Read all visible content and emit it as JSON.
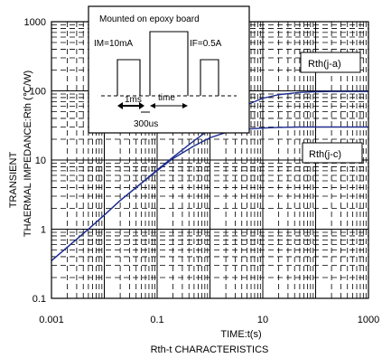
{
  "chart_data": {
    "type": "line",
    "title": "",
    "xlabel": "TIME:t(s)",
    "ylabel_line1": "TRANSIENT",
    "ylabel_line2": "THAERMAL IMPEDANCE:Rth (℃/W)",
    "caption": "Rth-t CHARACTERISTICS",
    "x_scale": "log",
    "y_scale": "log",
    "xlim": [
      0.001,
      1000
    ],
    "ylim": [
      0.1,
      1000
    ],
    "x_ticks": [
      {
        "value": 0.001,
        "label": "0.001"
      },
      {
        "value": 0.1,
        "label": "0.1"
      },
      {
        "value": 10,
        "label": "10"
      },
      {
        "value": 1000,
        "label": "1000"
      }
    ],
    "y_ticks": [
      {
        "value": 0.1,
        "label": "0.1"
      },
      {
        "value": 1,
        "label": "1"
      },
      {
        "value": 10,
        "label": "10"
      },
      {
        "value": 100,
        "label": "100"
      },
      {
        "value": 1000,
        "label": "1000"
      }
    ],
    "grid": true,
    "line_color": "#1f2f8f",
    "series": [
      {
        "name": "Rth(j-a)",
        "x": [
          0.001,
          0.002,
          0.005,
          0.01,
          0.02,
          0.05,
          0.1,
          0.2,
          0.5,
          1,
          2,
          5,
          10,
          20,
          50,
          100,
          200,
          500,
          1000
        ],
        "y": [
          0.35,
          0.55,
          1.0,
          1.6,
          2.6,
          4.6,
          7.2,
          11,
          19,
          28,
          42,
          63,
          78,
          88,
          95,
          97,
          98,
          98,
          98
        ]
      },
      {
        "name": "Rth(j-c)",
        "x": [
          0.001,
          0.002,
          0.005,
          0.01,
          0.02,
          0.05,
          0.1,
          0.2,
          0.5,
          1,
          2,
          5,
          10,
          20,
          50,
          100,
          200,
          500,
          1000
        ],
        "y": [
          0.35,
          0.55,
          1.0,
          1.6,
          2.6,
          4.6,
          7.0,
          10.5,
          16,
          21,
          25,
          28,
          29,
          29.6,
          30,
          30,
          30,
          30,
          30
        ]
      }
    ],
    "inset": {
      "title": "Mounted on epoxy board",
      "im_label": "IM=10mA",
      "if_label": "IF=0.5A",
      "im_width_label": "1ms",
      "time_label": "time",
      "period_label": "300us"
    }
  }
}
